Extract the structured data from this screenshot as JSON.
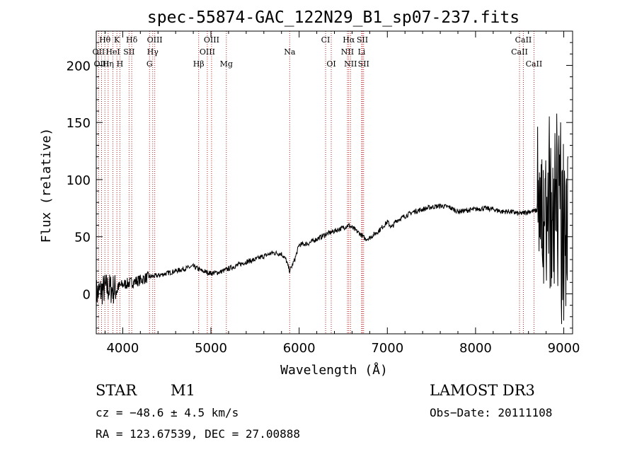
{
  "chart_data": {
    "type": "line",
    "title": "spec-55874-GAC_122N29_B1_sp07-237.fits",
    "xlabel": "Wavelength (Å)",
    "ylabel": "Flux (relative)",
    "xlim": [
      3700,
      9100
    ],
    "ylim": [
      -35,
      230
    ],
    "x_ticks": [
      4000,
      5000,
      6000,
      7000,
      8000,
      9000
    ],
    "x_tick_labels": [
      "4000",
      "5000",
      "6000",
      "7000",
      "8000",
      "9000"
    ],
    "y_ticks": [
      0,
      50,
      100,
      150,
      200
    ],
    "y_tick_labels": [
      "0",
      "50",
      "100",
      "150",
      "200"
    ],
    "series": [
      {
        "name": "spectrum",
        "color": "#000000",
        "x": [
          3700,
          3800,
          3900,
          4000,
          4100,
          4200,
          4300,
          4400,
          4500,
          4600,
          4700,
          4800,
          4900,
          5000,
          5100,
          5200,
          5300,
          5400,
          5500,
          5600,
          5700,
          5800,
          5850,
          5893,
          5950,
          6000,
          6100,
          6200,
          6300,
          6400,
          6500,
          6560,
          6600,
          6650,
          6700,
          6750,
          6800,
          6900,
          7000,
          7050,
          7100,
          7200,
          7300,
          7400,
          7500,
          7600,
          7700,
          7800,
          7900,
          8000,
          8100,
          8200,
          8300,
          8400,
          8500,
          8600,
          8700,
          8750,
          8800,
          8850,
          8900,
          8950,
          9000,
          9050
        ],
        "y": [
          0,
          5,
          4,
          8,
          10,
          12,
          15,
          16,
          18,
          20,
          22,
          24,
          20,
          18,
          19,
          22,
          25,
          28,
          30,
          33,
          36,
          35,
          30,
          20,
          30,
          43,
          44,
          48,
          52,
          55,
          58,
          60,
          58,
          55,
          52,
          48,
          49,
          55,
          63,
          58,
          64,
          68,
          72,
          74,
          76,
          77,
          76,
          72,
          73,
          74,
          75,
          74,
          72,
          72,
          70,
          72,
          73,
          70,
          66,
          72,
          65,
          70,
          75,
          78
        ]
      }
    ],
    "lines": [
      {
        "name": "Hθ",
        "wavelength": 3798
      },
      {
        "name": "K",
        "wavelength": 3934
      },
      {
        "name": "Hδ",
        "wavelength": 4102
      },
      {
        "name": "OIII",
        "wavelength": 4363
      },
      {
        "name": "OIII",
        "wavelength": 5007
      },
      {
        "name": "CI",
        "wavelength": 6300
      },
      {
        "name": "Hα",
        "wavelength": 6563
      },
      {
        "name": "SII",
        "wavelength": 6717
      },
      {
        "name": "CaII",
        "wavelength": 8542
      },
      {
        "name": "OII",
        "wavelength": 3727
      },
      {
        "name": "HeI",
        "wavelength": 3889
      },
      {
        "name": "SII",
        "wavelength": 4072
      },
      {
        "name": "Hγ",
        "wavelength": 4340
      },
      {
        "name": "OIII",
        "wavelength": 4959
      },
      {
        "name": "Na",
        "wavelength": 5893
      },
      {
        "name": "NII",
        "wavelength": 6548
      },
      {
        "name": "Li",
        "wavelength": 6708
      },
      {
        "name": "CaII",
        "wavelength": 8498
      },
      {
        "name": "OIII",
        "wavelength": 3760
      },
      {
        "name": "Hη",
        "wavelength": 3835
      },
      {
        "name": "H",
        "wavelength": 3968
      },
      {
        "name": "G",
        "wavelength": 4304
      },
      {
        "name": "Hβ",
        "wavelength": 4861
      },
      {
        "name": "Mg",
        "wavelength": 5175
      },
      {
        "name": "OI",
        "wavelength": 6364
      },
      {
        "name": "NII",
        "wavelength": 6583
      },
      {
        "name": "SII",
        "wavelength": 6731
      },
      {
        "name": "CaII",
        "wavelength": 8662
      }
    ]
  },
  "info": {
    "object_class": "STAR",
    "subclass": "M1",
    "survey": "LAMOST DR3",
    "redshift_text": "cz = −48.6 ± 4.5 km/s",
    "obs_date_text": "Obs−Date: 20111108",
    "coords_text": "RA = 123.67539, DEC =  27.00888"
  },
  "colors": {
    "spectrum": "#000000",
    "line_markers": "#b22222",
    "axes": "#000000"
  }
}
